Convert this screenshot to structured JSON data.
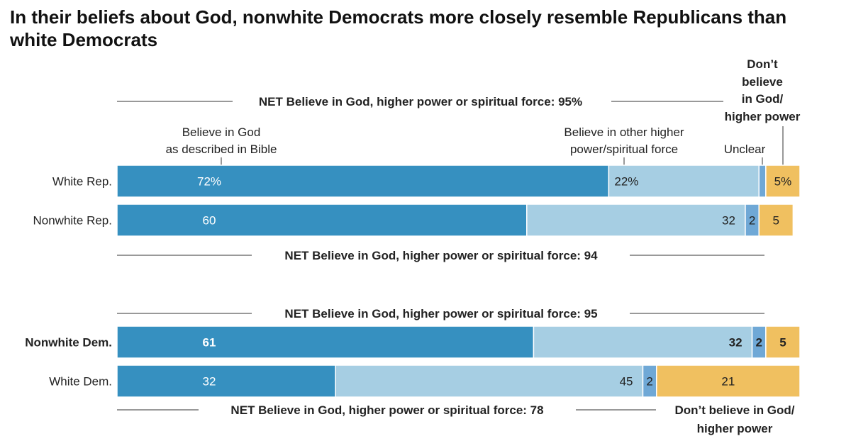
{
  "title": "In their beliefs about God, nonwhite Democrats more closely resemble Republicans than white Democrats",
  "column_headers": {
    "bible": [
      "Believe in God",
      "as described in Bible"
    ],
    "other": [
      "Believe in other higher",
      "power/spiritual force"
    ],
    "unclear": "Unclear",
    "dont": [
      "Don’t",
      "believe",
      "in God/",
      "higher power"
    ]
  },
  "net_labels": {
    "white_rep": "NET Believe in God, higher power or spiritual force: 95%",
    "nonwhite_rep": "NET Believe in God, higher power or spiritual force: 94",
    "nonwhite_dem": "NET Believe in God, higher power or spiritual force: 95",
    "white_dem": "NET Believe in God, higher power or spiritual force: 78"
  },
  "bottom_right_label": [
    "Don’t believe in God/",
    "higher power"
  ],
  "colors": {
    "bible": "#3690c0",
    "other": "#a6cee3",
    "unclear": "#6fa8d6",
    "dont": "#f0c060",
    "net_line": "#333333"
  },
  "chart_data": {
    "type": "bar",
    "orientation": "horizontal",
    "stacked": true,
    "categories": [
      "White Rep.",
      "Nonwhite Rep.",
      "Nonwhite Dem.",
      "White Dem."
    ],
    "bold_categories": [
      "Nonwhite Dem."
    ],
    "series": [
      {
        "name": "Believe in God as described in Bible",
        "values": [
          72,
          60,
          61,
          32
        ],
        "labels": [
          "72%",
          "60",
          "61",
          "32"
        ]
      },
      {
        "name": "Believe in other higher power/spiritual force",
        "values": [
          22,
          32,
          32,
          45
        ],
        "labels": [
          "22%",
          "32",
          "32",
          "45"
        ]
      },
      {
        "name": "Unclear",
        "values": [
          1,
          2,
          2,
          2
        ],
        "labels": [
          "",
          "2",
          "2",
          "2"
        ]
      },
      {
        "name": "Don’t believe in God/higher power",
        "values": [
          5,
          5,
          5,
          21
        ],
        "labels": [
          "5%",
          "5",
          "5",
          "21"
        ]
      }
    ],
    "xlim": [
      0,
      100
    ]
  }
}
